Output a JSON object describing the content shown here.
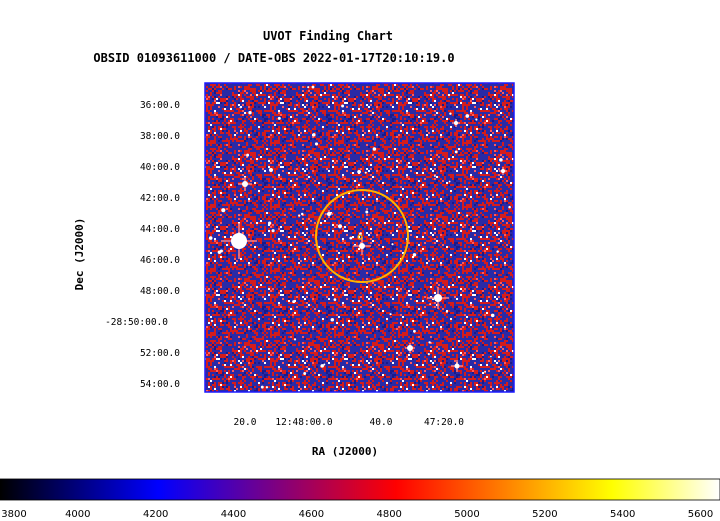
{
  "chart_data": {
    "type": "image",
    "title": "UVOT Finding Chart",
    "subtitle": "OBSID 01093611000 / DATE-OBS 2022-01-17T20:10:19.0",
    "xlabel": "RA (J2000)",
    "ylabel": "Dec (J2000)",
    "x_ticks": [
      "20.0",
      "12:48:00.0",
      "40.0",
      "47:20.0"
    ],
    "y_ticks": [
      "36:00.0",
      "38:00.0",
      "40:00.0",
      "42:00.0",
      "44:00.0",
      "46:00.0",
      "48:00.0",
      "-28:50:00.0",
      "52:00.0",
      "54:00.0"
    ],
    "colorbar": {
      "ticks": [
        3800,
        4000,
        4200,
        4400,
        4600,
        4800,
        5000,
        5200,
        5400,
        5600
      ],
      "range": [
        3800,
        5650
      ],
      "colormap": [
        "#000000",
        "#0000ff",
        "#ff0000",
        "#ffff00",
        "#ffffff"
      ]
    },
    "source_circle": {
      "color": "#ffb400"
    },
    "image_colors": {
      "blue": "#2a2aa6",
      "red": "#d41c1c",
      "white": "#ffffff",
      "frame": "#1a1aff"
    }
  }
}
